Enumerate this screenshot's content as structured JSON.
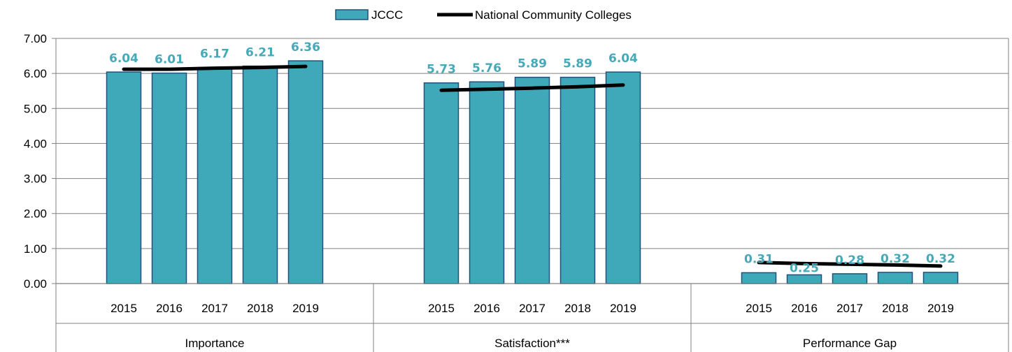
{
  "chart_data": {
    "type": "bar",
    "groups": [
      "Importance",
      "Satisfaction***",
      "Performance Gap"
    ],
    "categories": [
      "2015",
      "2016",
      "2017",
      "2018",
      "2019"
    ],
    "series": [
      {
        "name": "JCCC",
        "kind": "bar",
        "values": [
          [
            6.04,
            6.01,
            6.17,
            6.21,
            6.36
          ],
          [
            5.73,
            5.76,
            5.89,
            5.89,
            6.04
          ],
          [
            0.31,
            0.25,
            0.28,
            0.32,
            0.32
          ]
        ],
        "labels": [
          [
            "6.04",
            "6.01",
            "6.17",
            "6.21",
            "6.36"
          ],
          [
            "5.73",
            "5.76",
            "5.89",
            "5.89",
            "6.04"
          ],
          [
            "0.31",
            "0.25",
            "0.28",
            "0.32",
            "0.32"
          ]
        ]
      },
      {
        "name": "National Community Colleges",
        "kind": "line",
        "values": [
          [
            6.12,
            6.12,
            6.15,
            6.17,
            6.2
          ],
          [
            5.52,
            5.55,
            5.58,
            5.62,
            5.67
          ],
          [
            0.6,
            0.57,
            0.55,
            0.53,
            0.5
          ]
        ]
      }
    ],
    "yticks": [
      "0.00",
      "1.00",
      "2.00",
      "3.00",
      "4.00",
      "5.00",
      "6.00",
      "7.00"
    ],
    "ylim": [
      0,
      7
    ],
    "grid": true,
    "legend": "top-center",
    "colors": {
      "bar": "#3FA8B9",
      "bar_edge": "#23507A",
      "line": "#000000",
      "label": "#45A9B8"
    }
  }
}
